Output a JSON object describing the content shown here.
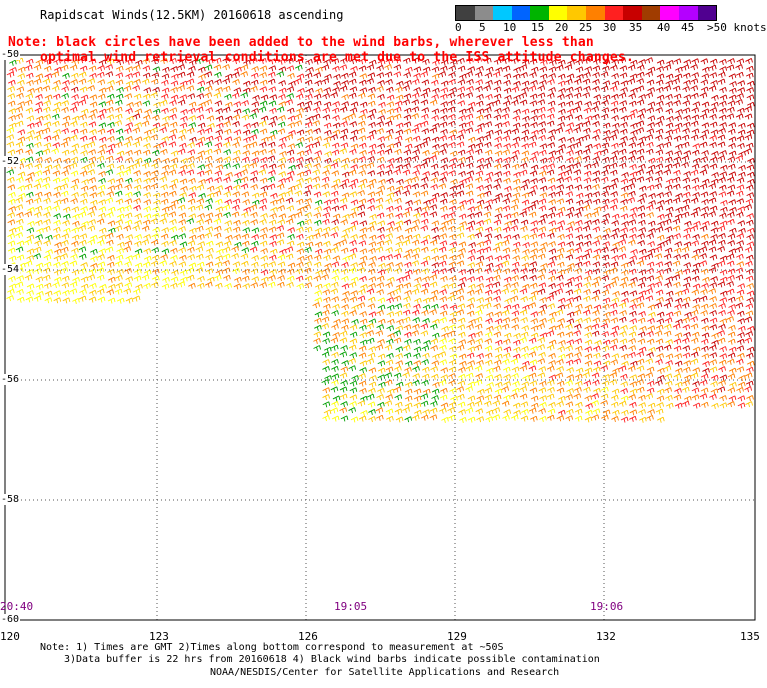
{
  "title": "Rapidscat Winds(12.5KM) 20160618 ascending",
  "note": {
    "line1": "Note: black circles have been added to the wind barbs, wherever less than",
    "line2": "optimal wind retrieval conditions are met due to the ISS attitude changes."
  },
  "legend": {
    "labels": [
      "0",
      "5",
      "10",
      "15",
      "20",
      "25",
      "30",
      "35",
      "40",
      "45",
      ">50 knots"
    ],
    "colors": [
      "#404040",
      "#8c8c8c",
      "#00c8ff",
      "#0064ff",
      "#00b400",
      "#ffff00",
      "#ffc800",
      "#ff8000",
      "#ff2020",
      "#c80000",
      "#a03c00",
      "#ff00ff",
      "#b400ff",
      "#500090"
    ]
  },
  "map": {
    "latitudes": [
      "-50",
      "-52",
      "-54",
      "-56",
      "-58",
      "-60"
    ],
    "longitudes": [
      "120",
      "123",
      "126",
      "129",
      "132",
      "135"
    ],
    "times": [
      "20:40",
      "19:05",
      "19:06"
    ],
    "speed_zones": {
      "west_swath": "15-25 knots",
      "northeast": "30-40 knots",
      "south_swath": "15-35 knots"
    }
  },
  "footer": {
    "line1": "Note: 1) Times are GMT 2)Times along bottom correspond to measurement at ~50S",
    "line2": "3)Data buffer is 22 hrs from 20160618 4) Black wind barbs indicate possible contamination",
    "line3": "NOAA/NESDIS/Center for Satellite Applications and Research"
  }
}
